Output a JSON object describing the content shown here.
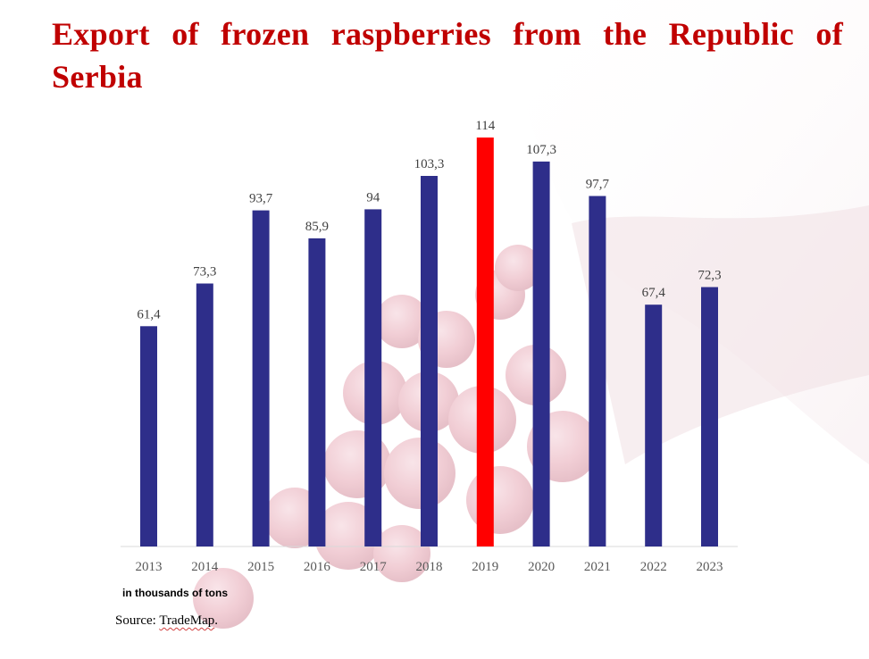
{
  "chart_data": {
    "type": "bar",
    "title": "Export of frozen raspberries from the Republic of Serbia",
    "categories": [
      "2013",
      "2014",
      "2015",
      "2016",
      "2017",
      "2018",
      "2019",
      "2020",
      "2021",
      "2022",
      "2023"
    ],
    "values": [
      61.4,
      73.3,
      93.7,
      85.9,
      94,
      103.3,
      114,
      107.3,
      97.7,
      67.4,
      72.3
    ],
    "data_labels": [
      "61,4",
      "73,3",
      "93,7",
      "85,9",
      "94",
      "103,3",
      "114",
      "107,3",
      "97,7",
      "67,4",
      "72,3"
    ],
    "highlight_category": "2019",
    "ylim": [
      0,
      114
    ],
    "grid": false,
    "legend": "none",
    "colors": {
      "bar": "#2e2e8a",
      "highlight": "#ff0000",
      "title": "#c00000",
      "axis": "#d9d9d9"
    }
  },
  "notes": {
    "unit": "in thousands of tons",
    "source_prefix": "Source: ",
    "source_name": "TradeMap",
    "source_suffix": "."
  }
}
